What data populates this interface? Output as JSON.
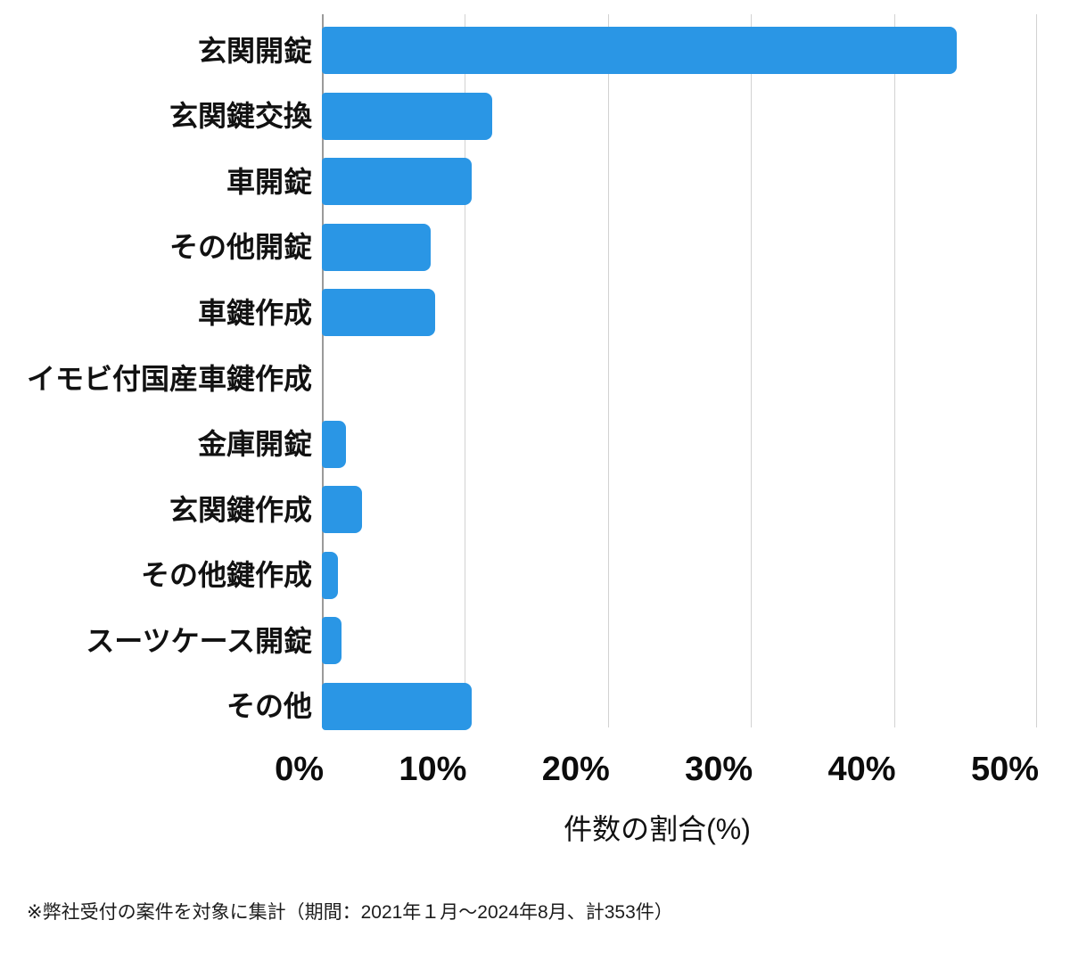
{
  "chart_data": {
    "type": "bar",
    "orientation": "horizontal",
    "title": "",
    "xlabel": "件数の割合(%)",
    "ylabel": "",
    "categories": [
      "玄関開錠",
      "玄関鍵交換",
      "車開錠",
      "その他開錠",
      "車鍵作成",
      "イモビ付国産車鍵作成",
      "金庫開錠",
      "玄関鍵作成",
      "その他鍵作成",
      "スーツケース開錠",
      "その他"
    ],
    "values": [
      44.4,
      11.9,
      10.5,
      7.6,
      7.9,
      0,
      1.7,
      2.8,
      1.1,
      1.4,
      10.5
    ],
    "value_unit": "%",
    "xlim": [
      0,
      50
    ],
    "x_ticks": [
      0,
      10,
      20,
      30,
      40,
      50
    ],
    "x_tick_labels": [
      "0%",
      "10%",
      "20%",
      "30%",
      "40%",
      "50%"
    ],
    "grid": true,
    "legend": false,
    "bar_color": "#2A96E5"
  },
  "footnote": "※弊社受付の案件を対象に集計（期間：2021年１月～2024年8月、計353件）",
  "colors": {
    "bar": "#2A96E5",
    "gridline": "#d2d2d2",
    "axis_line": "#9a9a9a",
    "text": "#111111",
    "background": "#ffffff"
  }
}
